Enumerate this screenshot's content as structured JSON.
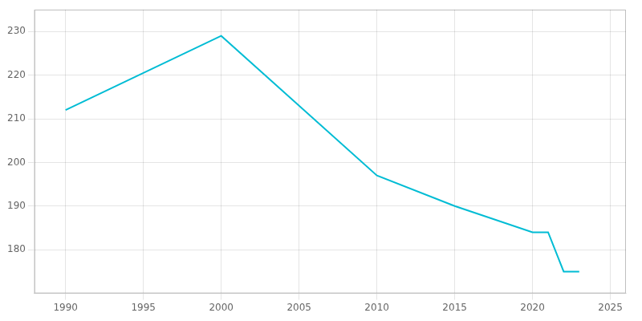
{
  "chart_data": {
    "type": "line",
    "x": [
      1990,
      2000,
      2010,
      2015,
      2020,
      2021,
      2022,
      2023
    ],
    "values": [
      212,
      229,
      197,
      190,
      184,
      184,
      175,
      175
    ],
    "color": "#00bcd4",
    "xlim": [
      1988,
      2026
    ],
    "xticks": [
      1990,
      1995,
      2000,
      2005,
      2010,
      2015,
      2020,
      2025
    ],
    "ylim": [
      170,
      235
    ],
    "yticks": [
      180,
      190,
      200,
      210,
      220,
      230
    ],
    "grid": true
  }
}
